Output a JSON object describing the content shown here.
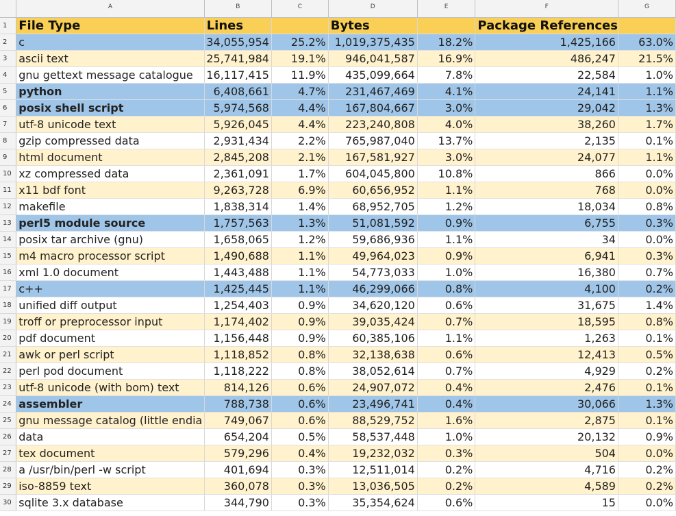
{
  "columns": [
    "A",
    "B",
    "C",
    "D",
    "E",
    "F",
    "G"
  ],
  "colors": {
    "header": "#f9cf55",
    "highlight": "#9fc5e8",
    "band": "#fff2cc",
    "plain": "#ffffff"
  },
  "rows": [
    {
      "num": "1",
      "style": "head",
      "bold": true,
      "cells": [
        "File Type",
        "Lines",
        "",
        "Bytes",
        "",
        "Package References",
        ""
      ]
    },
    {
      "num": "2",
      "style": "blue",
      "bold": false,
      "cells": [
        "c",
        "34,055,954",
        "25.2%",
        "1,019,375,435",
        "18.2%",
        "1,425,166",
        "63.0%"
      ]
    },
    {
      "num": "3",
      "style": "cream",
      "bold": false,
      "cells": [
        "ascii text",
        "25,741,984",
        "19.1%",
        "946,041,587",
        "16.9%",
        "486,247",
        "21.5%"
      ]
    },
    {
      "num": "4",
      "style": "white",
      "bold": false,
      "cells": [
        "gnu gettext message catalogue",
        "16,117,415",
        "11.9%",
        "435,099,664",
        "7.8%",
        "22,584",
        "1.0%"
      ]
    },
    {
      "num": "5",
      "style": "blue",
      "bold": true,
      "cells": [
        "python",
        "6,408,661",
        "4.7%",
        "231,467,469",
        "4.1%",
        "24,141",
        "1.1%"
      ]
    },
    {
      "num": "6",
      "style": "blue",
      "bold": true,
      "cells": [
        "posix shell script",
        "5,974,568",
        "4.4%",
        "167,804,667",
        "3.0%",
        "29,042",
        "1.3%"
      ]
    },
    {
      "num": "7",
      "style": "cream",
      "bold": false,
      "cells": [
        "utf-8 unicode text",
        "5,926,045",
        "4.4%",
        "223,240,808",
        "4.0%",
        "38,260",
        "1.7%"
      ]
    },
    {
      "num": "8",
      "style": "white",
      "bold": false,
      "cells": [
        "gzip compressed data",
        "2,931,434",
        "2.2%",
        "765,987,040",
        "13.7%",
        "2,135",
        "0.1%"
      ]
    },
    {
      "num": "9",
      "style": "cream",
      "bold": false,
      "cells": [
        "html document",
        "2,845,208",
        "2.1%",
        "167,581,927",
        "3.0%",
        "24,077",
        "1.1%"
      ]
    },
    {
      "num": "10",
      "style": "white",
      "bold": false,
      "cells": [
        "xz compressed data",
        "2,361,091",
        "1.7%",
        "604,045,800",
        "10.8%",
        "866",
        "0.0%"
      ]
    },
    {
      "num": "11",
      "style": "cream",
      "bold": false,
      "cells": [
        "x11 bdf font",
        "9,263,728",
        "6.9%",
        "60,656,952",
        "1.1%",
        "768",
        "0.0%"
      ]
    },
    {
      "num": "12",
      "style": "white",
      "bold": false,
      "cells": [
        "makefile",
        "1,838,314",
        "1.4%",
        "68,952,705",
        "1.2%",
        "18,034",
        "0.8%"
      ]
    },
    {
      "num": "13",
      "style": "blue",
      "bold": true,
      "cells": [
        "perl5 module source",
        "1,757,563",
        "1.3%",
        "51,081,592",
        "0.9%",
        "6,755",
        "0.3%"
      ]
    },
    {
      "num": "14",
      "style": "white",
      "bold": false,
      "cells": [
        "posix tar archive (gnu)",
        "1,658,065",
        "1.2%",
        "59,686,936",
        "1.1%",
        "34",
        "0.0%"
      ]
    },
    {
      "num": "15",
      "style": "cream",
      "bold": false,
      "cells": [
        "m4 macro processor script",
        "1,490,688",
        "1.1%",
        "49,964,023",
        "0.9%",
        "6,941",
        "0.3%"
      ]
    },
    {
      "num": "16",
      "style": "white",
      "bold": false,
      "cells": [
        "xml 1.0 document",
        "1,443,488",
        "1.1%",
        "54,773,033",
        "1.0%",
        "16,380",
        "0.7%"
      ]
    },
    {
      "num": "17",
      "style": "blue",
      "bold": false,
      "cells": [
        "c++",
        "1,425,445",
        "1.1%",
        "46,299,066",
        "0.8%",
        "4,100",
        "0.2%"
      ]
    },
    {
      "num": "18",
      "style": "white",
      "bold": false,
      "cells": [
        "unified diff output",
        "1,254,403",
        "0.9%",
        "34,620,120",
        "0.6%",
        "31,675",
        "1.4%"
      ]
    },
    {
      "num": "19",
      "style": "cream",
      "bold": false,
      "cells": [
        "troff or preprocessor input",
        "1,174,402",
        "0.9%",
        "39,035,424",
        "0.7%",
        "18,595",
        "0.8%"
      ]
    },
    {
      "num": "20",
      "style": "white",
      "bold": false,
      "cells": [
        "pdf document",
        "1,156,448",
        "0.9%",
        "60,385,106",
        "1.1%",
        "1,263",
        "0.1%"
      ]
    },
    {
      "num": "21",
      "style": "cream",
      "bold": false,
      "cells": [
        "awk or perl script",
        "1,118,852",
        "0.8%",
        "32,138,638",
        "0.6%",
        "12,413",
        "0.5%"
      ]
    },
    {
      "num": "22",
      "style": "white",
      "bold": false,
      "cells": [
        "perl pod document",
        "1,118,222",
        "0.8%",
        "38,052,614",
        "0.7%",
        "4,929",
        "0.2%"
      ]
    },
    {
      "num": "23",
      "style": "cream",
      "bold": false,
      "cells": [
        "utf-8 unicode (with bom) text",
        "814,126",
        "0.6%",
        "24,907,072",
        "0.4%",
        "2,476",
        "0.1%"
      ]
    },
    {
      "num": "24",
      "style": "blue",
      "bold": true,
      "cells": [
        "assembler",
        "788,738",
        "0.6%",
        "23,496,741",
        "0.4%",
        "30,066",
        "1.3%"
      ]
    },
    {
      "num": "25",
      "style": "cream",
      "bold": false,
      "cells": [
        "gnu message catalog (little endia",
        "749,067",
        "0.6%",
        "88,529,752",
        "1.6%",
        "2,875",
        "0.1%"
      ]
    },
    {
      "num": "26",
      "style": "white",
      "bold": false,
      "cells": [
        "data",
        "654,204",
        "0.5%",
        "58,537,448",
        "1.0%",
        "20,132",
        "0.9%"
      ]
    },
    {
      "num": "27",
      "style": "cream",
      "bold": false,
      "cells": [
        "tex document",
        "579,296",
        "0.4%",
        "19,232,032",
        "0.3%",
        "504",
        "0.0%"
      ]
    },
    {
      "num": "28",
      "style": "white",
      "bold": false,
      "cells": [
        "a /usr/bin/perl -w script",
        "401,694",
        "0.3%",
        "12,511,014",
        "0.2%",
        "4,716",
        "0.2%"
      ]
    },
    {
      "num": "29",
      "style": "cream",
      "bold": false,
      "cells": [
        "iso-8859 text",
        "360,078",
        "0.3%",
        "13,036,505",
        "0.2%",
        "4,589",
        "0.2%"
      ]
    },
    {
      "num": "30",
      "style": "white",
      "bold": false,
      "cells": [
        "sqlite 3.x database",
        "344,790",
        "0.3%",
        "35,354,624",
        "0.6%",
        "15",
        "0.0%"
      ]
    }
  ]
}
